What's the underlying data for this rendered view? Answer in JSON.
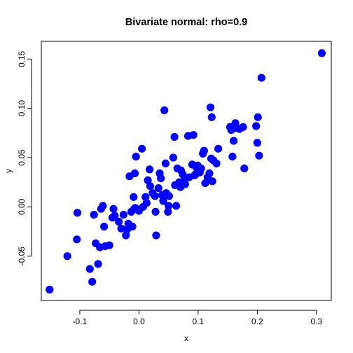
{
  "chart_data": {
    "type": "scatter",
    "title": "Bivariate normal: rho=0.9",
    "xlabel": "x",
    "ylabel": "y",
    "xlim": [
      -0.165,
      0.325
    ],
    "ylim": [
      -0.095,
      0.168
    ],
    "xticks": [
      -0.1,
      0.0,
      0.1,
      0.2,
      0.3
    ],
    "xtick_labels": [
      "-0.1",
      "0.0",
      "0.1",
      "0.2",
      "0.3"
    ],
    "yticks": [
      -0.05,
      0.0,
      0.05,
      0.1,
      0.15
    ],
    "ytick_labels": [
      "-0.05",
      "0.00",
      "0.05",
      "0.10",
      "0.15"
    ],
    "grid": false,
    "legend": "none",
    "point_color": "#0000ff",
    "points": [
      [
        -0.151,
        -0.084
      ],
      [
        -0.121,
        -0.05
      ],
      [
        -0.105,
        -0.033
      ],
      [
        -0.104,
        -0.006
      ],
      [
        -0.083,
        -0.063
      ],
      [
        -0.079,
        -0.076
      ],
      [
        -0.076,
        -0.008
      ],
      [
        -0.073,
        -0.037
      ],
      [
        -0.069,
        -0.058
      ],
      [
        -0.066,
        -0.041
      ],
      [
        -0.064,
        -0.002
      ],
      [
        -0.061,
        0.001
      ],
      [
        -0.059,
        -0.02
      ],
      [
        -0.057,
        -0.04
      ],
      [
        -0.05,
        -0.039
      ],
      [
        -0.045,
        -0.011
      ],
      [
        -0.043,
        -0.002
      ],
      [
        -0.041,
        -0.009
      ],
      [
        -0.034,
        -0.015
      ],
      [
        -0.03,
        -0.022
      ],
      [
        -0.026,
        -0.008
      ],
      [
        -0.022,
        -0.029
      ],
      [
        -0.02,
        -0.023
      ],
      [
        -0.018,
        -0.017
      ],
      [
        -0.016,
        0.031
      ],
      [
        -0.013,
        -0.005
      ],
      [
        -0.011,
        -0.02
      ],
      [
        -0.009,
        0.01
      ],
      [
        -0.008,
        -0.002
      ],
      [
        -0.007,
        0.034
      ],
      [
        -0.006,
        -0.001
      ],
      [
        -0.005,
        0.051
      ],
      [
        0.0,
        -0.004
      ],
      [
        0.005,
        0.059
      ],
      [
        0.007,
        0.0
      ],
      [
        0.011,
        0.01
      ],
      [
        0.013,
        0.004
      ],
      [
        0.015,
        0.027
      ],
      [
        0.018,
        0.038
      ],
      [
        0.019,
        0.021
      ],
      [
        0.023,
        0.014
      ],
      [
        0.027,
        0.011
      ],
      [
        0.028,
        -0.005
      ],
      [
        0.029,
        -0.029
      ],
      [
        0.033,
        0.019
      ],
      [
        0.035,
        0.034
      ],
      [
        0.037,
        0.029
      ],
      [
        0.039,
        0.012
      ],
      [
        0.041,
        0.006
      ],
      [
        0.043,
        0.098
      ],
      [
        0.045,
        0.044
      ],
      [
        0.046,
        0.014
      ],
      [
        0.049,
        -0.005
      ],
      [
        0.05,
        0.001
      ],
      [
        0.051,
        0.011
      ],
      [
        0.058,
        0.05
      ],
      [
        0.06,
        0.071
      ],
      [
        0.061,
        0.022
      ],
      [
        0.063,
        0.001
      ],
      [
        0.065,
        0.039
      ],
      [
        0.068,
        0.025
      ],
      [
        0.07,
        0.02
      ],
      [
        0.071,
        0.037
      ],
      [
        0.074,
        0.033
      ],
      [
        0.077,
        0.028
      ],
      [
        0.078,
        0.023
      ],
      [
        0.083,
        0.072
      ],
      [
        0.085,
        0.03
      ],
      [
        0.09,
        0.043
      ],
      [
        0.092,
        0.073
      ],
      [
        0.094,
        0.032
      ],
      [
        0.096,
        0.033
      ],
      [
        0.097,
        0.04
      ],
      [
        0.099,
        0.042
      ],
      [
        0.101,
        0.037
      ],
      [
        0.103,
        0.035
      ],
      [
        0.105,
        0.039
      ],
      [
        0.108,
        0.054
      ],
      [
        0.11,
        0.057
      ],
      [
        0.112,
        0.024
      ],
      [
        0.116,
        0.03
      ],
      [
        0.119,
        0.034
      ],
      [
        0.121,
        0.101
      ],
      [
        0.122,
        0.049
      ],
      [
        0.123,
        0.091
      ],
      [
        0.124,
        0.026
      ],
      [
        0.126,
        0.047
      ],
      [
        0.131,
        0.044
      ],
      [
        0.134,
        0.059
      ],
      [
        0.154,
        0.081
      ],
      [
        0.156,
        0.078
      ],
      [
        0.158,
        0.051
      ],
      [
        0.16,
        0.067
      ],
      [
        0.163,
        0.085
      ],
      [
        0.165,
        0.08
      ],
      [
        0.17,
        0.079
      ],
      [
        0.176,
        0.081
      ],
      [
        0.178,
        0.039
      ],
      [
        0.198,
        0.082
      ],
      [
        0.2,
        0.065
      ],
      [
        0.201,
        0.091
      ],
      [
        0.203,
        0.052
      ],
      [
        0.207,
        0.131
      ],
      [
        0.309,
        0.156
      ]
    ]
  }
}
